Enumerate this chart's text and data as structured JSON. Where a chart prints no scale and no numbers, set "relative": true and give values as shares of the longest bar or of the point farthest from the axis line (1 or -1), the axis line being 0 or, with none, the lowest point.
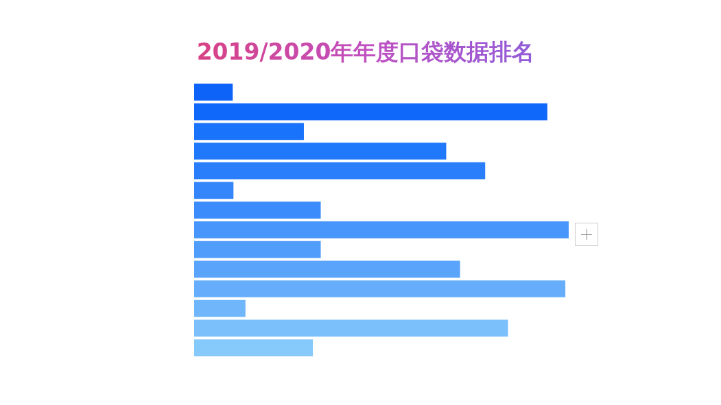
{
  "chart_data": {
    "type": "bar",
    "orientation": "horizontal",
    "relative": true,
    "title": "2019/2020年年度口袋数据排名",
    "categories": [
      null,
      null,
      null,
      null,
      null,
      null,
      null,
      null,
      null,
      null,
      null,
      null,
      null,
      null
    ],
    "values": [
      0.103,
      0.943,
      0.293,
      0.673,
      0.777,
      0.105,
      0.338,
      1,
      0.338,
      0.71,
      0.991,
      0.137,
      0.838,
      0.317
    ],
    "colors": [
      "#0d63f8",
      "#1068fa",
      "#1a73fb",
      "#2078fb",
      "#2b7efb",
      "#3586fb",
      "#3d8cfb",
      "#4896fb",
      "#509dfb",
      "#5aa4fb",
      "#66aefb",
      "#70b6fb",
      "#7bc0fb",
      "#86c9fb"
    ]
  }
}
